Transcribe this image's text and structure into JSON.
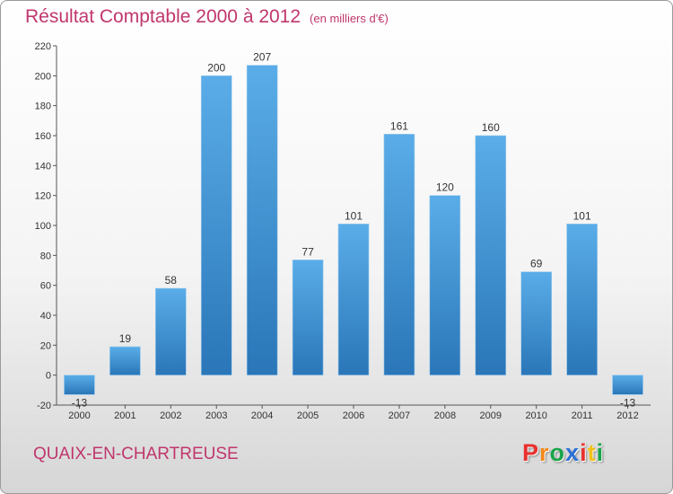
{
  "header": {
    "title": "Résultat Comptable 2000 à 2012",
    "subtitle": "(en milliers d'€)"
  },
  "footer": {
    "commune": "QUAIX-EN-CHARTREUSE",
    "logo_letters": [
      "P",
      "r",
      "o",
      "x",
      "i",
      "t",
      "i"
    ],
    "logo_colors": [
      "#e8312f",
      "#f28a1a",
      "#1aa34a",
      "#2b6fd6",
      "#e8312f",
      "#f2c21a",
      "#1aa34a"
    ]
  },
  "colors": {
    "accent": "#c0366d",
    "bar_top": "#5aade8",
    "bar_bottom": "#2a76b8"
  },
  "chart_data": {
    "type": "bar",
    "title": "Résultat Comptable 2000 à 2012",
    "subtitle": "(en milliers d'€)",
    "categories": [
      "2000",
      "2001",
      "2002",
      "2003",
      "2004",
      "2005",
      "2006",
      "2007",
      "2008",
      "2009",
      "2010",
      "2011",
      "2012"
    ],
    "values": [
      -13,
      19,
      58,
      200,
      207,
      77,
      101,
      161,
      120,
      160,
      69,
      101,
      -13
    ],
    "value_labels": [
      "-13",
      "19",
      "58",
      "200",
      "207",
      "77",
      "101",
      "161",
      "120",
      "160",
      "69",
      "101",
      "-13"
    ],
    "y_ticks": [
      -20,
      0,
      20,
      40,
      60,
      80,
      100,
      120,
      140,
      160,
      180,
      200,
      220
    ],
    "ylim": [
      -20,
      220
    ],
    "grid": false,
    "legend": "none"
  }
}
